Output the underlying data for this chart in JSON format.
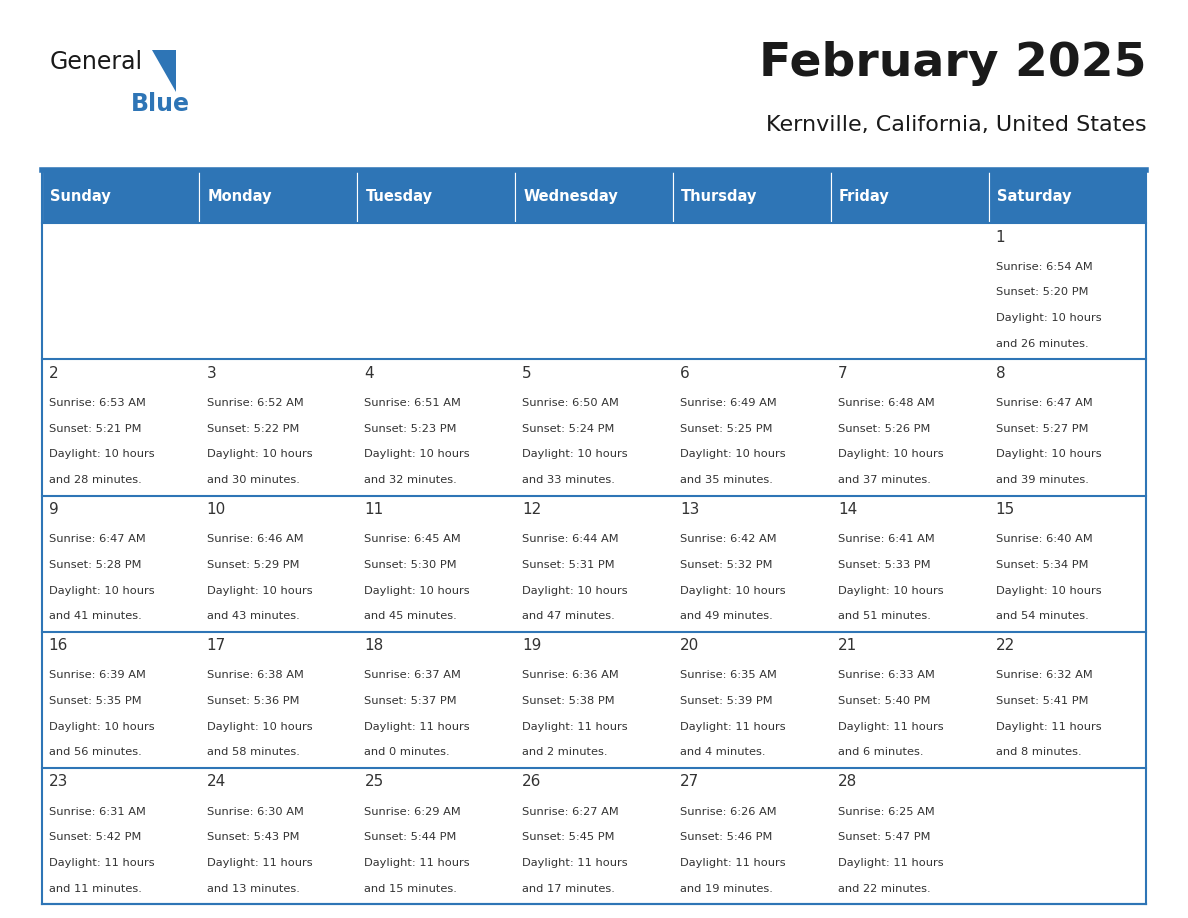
{
  "title": "February 2025",
  "subtitle": "Kernville, California, United States",
  "header_color": "#2E75B6",
  "header_text_color": "#FFFFFF",
  "day_names": [
    "Sunday",
    "Monday",
    "Tuesday",
    "Wednesday",
    "Thursday",
    "Friday",
    "Saturday"
  ],
  "cell_bg": "#FFFFFF",
  "border_color": "#2E75B6",
  "text_color": "#333333",
  "title_color": "#1A1A1A",
  "logo_general_color": "#1A1A1A",
  "logo_blue_color": "#2E75B6",
  "days": [
    {
      "day": 1,
      "col": 6,
      "row": 0,
      "sunrise": "6:54 AM",
      "sunset": "5:20 PM",
      "daylight": "10 hours and 26 minutes."
    },
    {
      "day": 2,
      "col": 0,
      "row": 1,
      "sunrise": "6:53 AM",
      "sunset": "5:21 PM",
      "daylight": "10 hours and 28 minutes."
    },
    {
      "day": 3,
      "col": 1,
      "row": 1,
      "sunrise": "6:52 AM",
      "sunset": "5:22 PM",
      "daylight": "10 hours and 30 minutes."
    },
    {
      "day": 4,
      "col": 2,
      "row": 1,
      "sunrise": "6:51 AM",
      "sunset": "5:23 PM",
      "daylight": "10 hours and 32 minutes."
    },
    {
      "day": 5,
      "col": 3,
      "row": 1,
      "sunrise": "6:50 AM",
      "sunset": "5:24 PM",
      "daylight": "10 hours and 33 minutes."
    },
    {
      "day": 6,
      "col": 4,
      "row": 1,
      "sunrise": "6:49 AM",
      "sunset": "5:25 PM",
      "daylight": "10 hours and 35 minutes."
    },
    {
      "day": 7,
      "col": 5,
      "row": 1,
      "sunrise": "6:48 AM",
      "sunset": "5:26 PM",
      "daylight": "10 hours and 37 minutes."
    },
    {
      "day": 8,
      "col": 6,
      "row": 1,
      "sunrise": "6:47 AM",
      "sunset": "5:27 PM",
      "daylight": "10 hours and 39 minutes."
    },
    {
      "day": 9,
      "col": 0,
      "row": 2,
      "sunrise": "6:47 AM",
      "sunset": "5:28 PM",
      "daylight": "10 hours and 41 minutes."
    },
    {
      "day": 10,
      "col": 1,
      "row": 2,
      "sunrise": "6:46 AM",
      "sunset": "5:29 PM",
      "daylight": "10 hours and 43 minutes."
    },
    {
      "day": 11,
      "col": 2,
      "row": 2,
      "sunrise": "6:45 AM",
      "sunset": "5:30 PM",
      "daylight": "10 hours and 45 minutes."
    },
    {
      "day": 12,
      "col": 3,
      "row": 2,
      "sunrise": "6:44 AM",
      "sunset": "5:31 PM",
      "daylight": "10 hours and 47 minutes."
    },
    {
      "day": 13,
      "col": 4,
      "row": 2,
      "sunrise": "6:42 AM",
      "sunset": "5:32 PM",
      "daylight": "10 hours and 49 minutes."
    },
    {
      "day": 14,
      "col": 5,
      "row": 2,
      "sunrise": "6:41 AM",
      "sunset": "5:33 PM",
      "daylight": "10 hours and 51 minutes."
    },
    {
      "day": 15,
      "col": 6,
      "row": 2,
      "sunrise": "6:40 AM",
      "sunset": "5:34 PM",
      "daylight": "10 hours and 54 minutes."
    },
    {
      "day": 16,
      "col": 0,
      "row": 3,
      "sunrise": "6:39 AM",
      "sunset": "5:35 PM",
      "daylight": "10 hours and 56 minutes."
    },
    {
      "day": 17,
      "col": 1,
      "row": 3,
      "sunrise": "6:38 AM",
      "sunset": "5:36 PM",
      "daylight": "10 hours and 58 minutes."
    },
    {
      "day": 18,
      "col": 2,
      "row": 3,
      "sunrise": "6:37 AM",
      "sunset": "5:37 PM",
      "daylight": "11 hours and 0 minutes."
    },
    {
      "day": 19,
      "col": 3,
      "row": 3,
      "sunrise": "6:36 AM",
      "sunset": "5:38 PM",
      "daylight": "11 hours and 2 minutes."
    },
    {
      "day": 20,
      "col": 4,
      "row": 3,
      "sunrise": "6:35 AM",
      "sunset": "5:39 PM",
      "daylight": "11 hours and 4 minutes."
    },
    {
      "day": 21,
      "col": 5,
      "row": 3,
      "sunrise": "6:33 AM",
      "sunset": "5:40 PM",
      "daylight": "11 hours and 6 minutes."
    },
    {
      "day": 22,
      "col": 6,
      "row": 3,
      "sunrise": "6:32 AM",
      "sunset": "5:41 PM",
      "daylight": "11 hours and 8 minutes."
    },
    {
      "day": 23,
      "col": 0,
      "row": 4,
      "sunrise": "6:31 AM",
      "sunset": "5:42 PM",
      "daylight": "11 hours and 11 minutes."
    },
    {
      "day": 24,
      "col": 1,
      "row": 4,
      "sunrise": "6:30 AM",
      "sunset": "5:43 PM",
      "daylight": "11 hours and 13 minutes."
    },
    {
      "day": 25,
      "col": 2,
      "row": 4,
      "sunrise": "6:29 AM",
      "sunset": "5:44 PM",
      "daylight": "11 hours and 15 minutes."
    },
    {
      "day": 26,
      "col": 3,
      "row": 4,
      "sunrise": "6:27 AM",
      "sunset": "5:45 PM",
      "daylight": "11 hours and 17 minutes."
    },
    {
      "day": 27,
      "col": 4,
      "row": 4,
      "sunrise": "6:26 AM",
      "sunset": "5:46 PM",
      "daylight": "11 hours and 19 minutes."
    },
    {
      "day": 28,
      "col": 5,
      "row": 4,
      "sunrise": "6:25 AM",
      "sunset": "5:47 PM",
      "daylight": "11 hours and 22 minutes."
    }
  ]
}
